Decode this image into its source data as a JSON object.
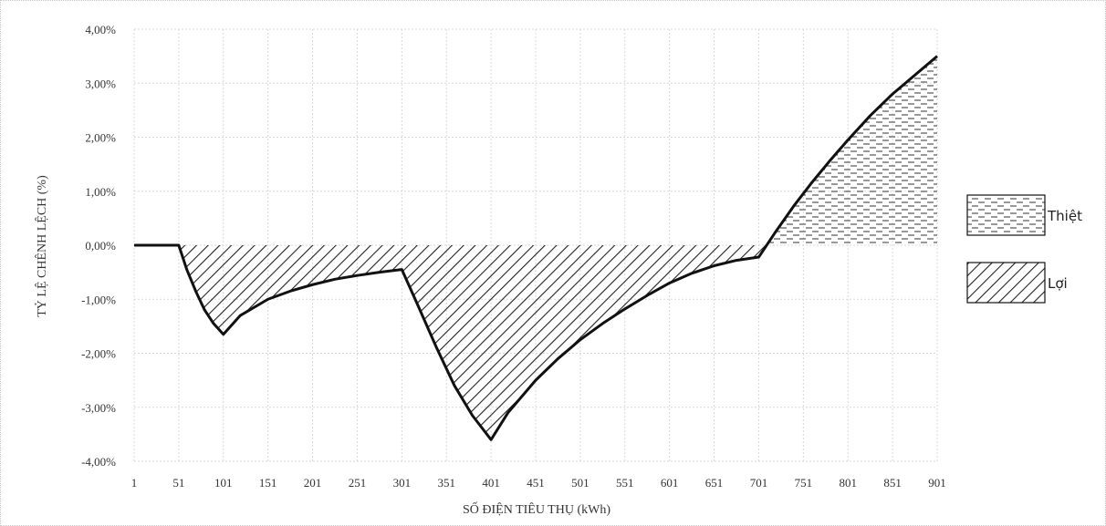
{
  "chart_data": {
    "type": "area",
    "xlabel": "SỐ ĐIỆN TIÊU THỤ (kWh)",
    "ylabel": "TỶ LỆ CHÊNH LỆCH (%)",
    "x_ticks": [
      "1",
      "51",
      "101",
      "151",
      "201",
      "251",
      "301",
      "351",
      "401",
      "451",
      "501",
      "551",
      "601",
      "651",
      "701",
      "751",
      "801",
      "851",
      "901"
    ],
    "y_ticks": [
      "4,00%",
      "3,00%",
      "2,00%",
      "1,00%",
      "0,00%",
      "-1,00%",
      "-2,00%",
      "-3,00%",
      "-4,00%"
    ],
    "xlim": [
      1,
      901
    ],
    "ylim": [
      -4,
      4
    ],
    "grid": true,
    "legend_position": "right",
    "colors": {
      "line": "#111111",
      "hatch": "#222222",
      "grid": "#d8d8d8"
    },
    "series": [
      {
        "x": [
          1,
          51,
          60,
          70,
          80,
          90,
          101,
          120,
          151,
          176,
          201,
          226,
          251,
          276,
          301,
          320,
          340,
          360,
          380,
          401,
          420,
          451,
          476,
          501,
          526,
          551,
          576,
          601,
          626,
          651,
          676,
          701,
          720,
          740,
          760,
          780,
          801,
          826,
          851,
          876,
          901
        ],
        "values": [
          0,
          0,
          -0.45,
          -0.85,
          -1.2,
          -1.45,
          -1.65,
          -1.3,
          -1.0,
          -0.85,
          -0.73,
          -0.63,
          -0.56,
          -0.5,
          -0.45,
          -1.15,
          -1.9,
          -2.6,
          -3.15,
          -3.6,
          -3.1,
          -2.5,
          -2.1,
          -1.75,
          -1.45,
          -1.18,
          -0.93,
          -0.7,
          -0.52,
          -0.38,
          -0.28,
          -0.22,
          0.25,
          0.72,
          1.15,
          1.55,
          1.95,
          2.4,
          2.8,
          3.15,
          3.5
        ]
      }
    ],
    "legend": [
      {
        "label": "Thiệt",
        "pattern": "dashes"
      },
      {
        "label": "Lợi",
        "pattern": "diagonal"
      }
    ]
  }
}
